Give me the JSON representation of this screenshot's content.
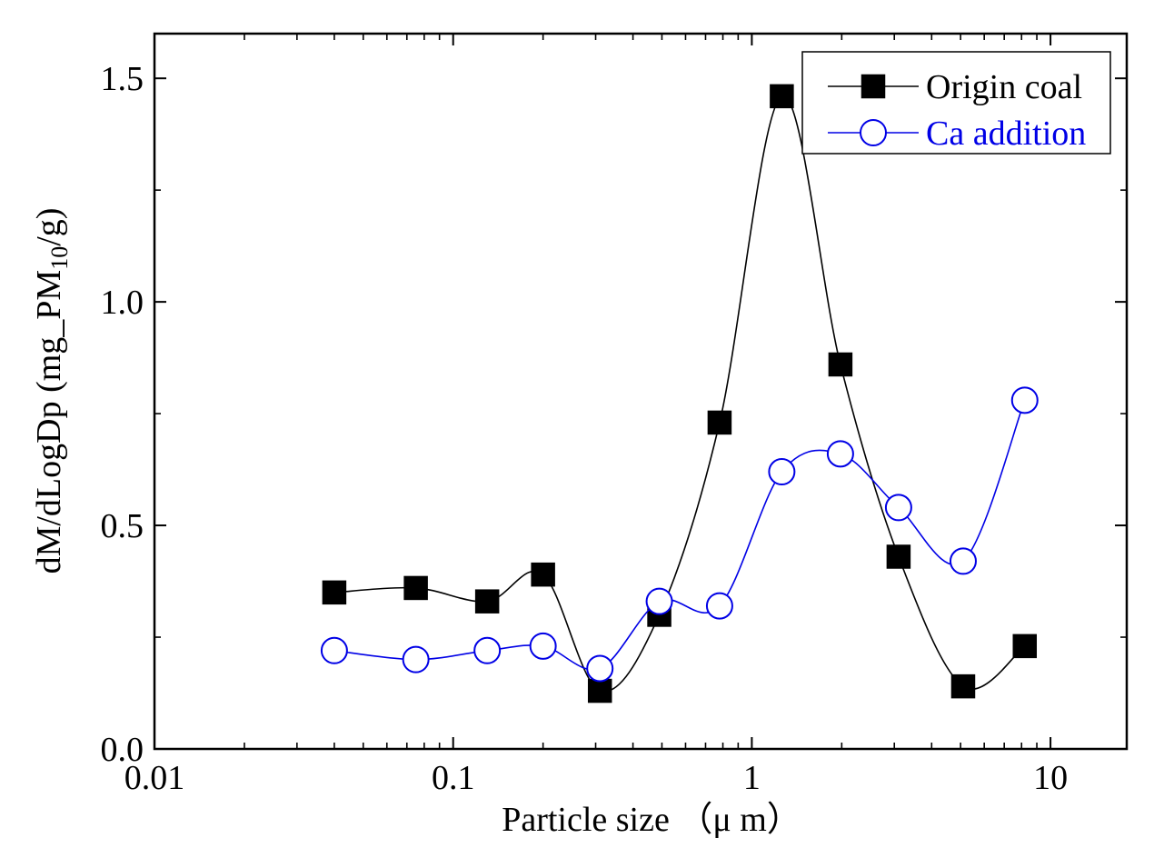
{
  "chart_data": {
    "type": "line",
    "title": "",
    "xlabel": "Particle size （μ m）",
    "ylabel": "dM/dLogDp (mg_PM10/g)",
    "ylabel_main": "dM/dLogDp (mg_PM",
    "ylabel_sub": "10",
    "ylabel_tail": "/g)",
    "xscale": "log",
    "xlim": [
      0.01,
      18
    ],
    "ylim": [
      0.0,
      1.6
    ],
    "x_ticks": [
      {
        "value": 0.01,
        "label": "0.01"
      },
      {
        "value": 0.1,
        "label": "0.1"
      },
      {
        "value": 1,
        "label": "1"
      },
      {
        "value": 10,
        "label": "10"
      }
    ],
    "y_ticks": [
      {
        "value": 0.0,
        "label": "0.0"
      },
      {
        "value": 0.5,
        "label": "0.5"
      },
      {
        "value": 1.0,
        "label": "1.0"
      },
      {
        "value": 1.5,
        "label": "1.5"
      }
    ],
    "grid": false,
    "legend_position": "top-right",
    "series": [
      {
        "name": "Origin coal",
        "color": "#000000",
        "marker": "filled-square",
        "x": [
          0.04,
          0.075,
          0.13,
          0.2,
          0.31,
          0.49,
          0.78,
          1.26,
          1.98,
          3.1,
          5.1,
          8.2
        ],
        "values": [
          0.35,
          0.36,
          0.33,
          0.39,
          0.13,
          0.3,
          0.73,
          1.46,
          0.86,
          0.43,
          0.14,
          0.23
        ]
      },
      {
        "name": "Ca addition",
        "color": "#0000e6",
        "marker": "open-circle",
        "x": [
          0.04,
          0.075,
          0.13,
          0.2,
          0.31,
          0.49,
          0.78,
          1.26,
          1.98,
          3.1,
          5.1,
          8.2
        ],
        "values": [
          0.22,
          0.2,
          0.22,
          0.23,
          0.18,
          0.33,
          0.32,
          0.62,
          0.66,
          0.54,
          0.42,
          0.78
        ]
      }
    ]
  }
}
